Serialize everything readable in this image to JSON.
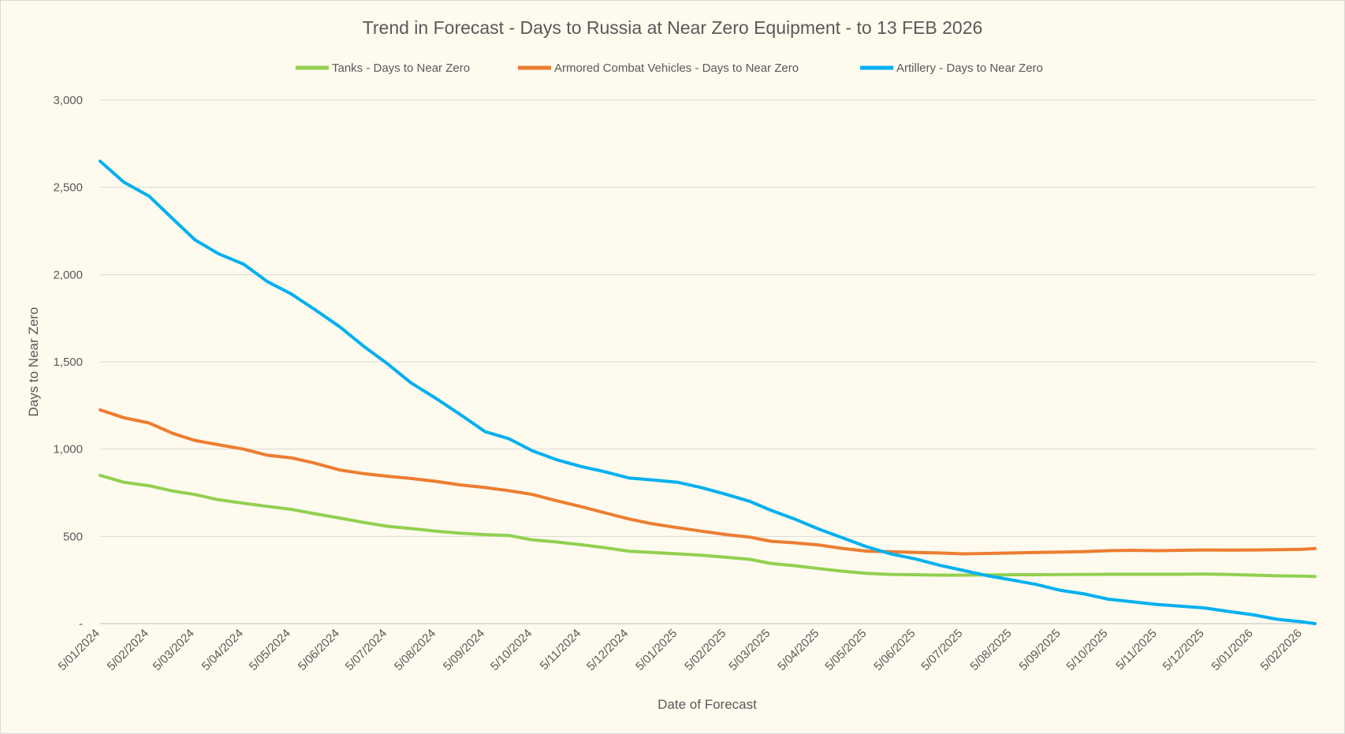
{
  "chart_data": {
    "type": "line",
    "title": "Trend in Forecast - Days to Russia at Near Zero Equipment - to 13 FEB 2026",
    "xlabel": "Date of Forecast",
    "ylabel": "Days to Near Zero",
    "ylim": [
      0,
      3000
    ],
    "yticks": [
      0,
      500,
      1000,
      1500,
      2000,
      2500,
      3000
    ],
    "ytick_labels": [
      "-",
      "500",
      "1,000",
      "1,500",
      "2,000",
      "2,500",
      "3,000"
    ],
    "xlim": [
      "2024-01-05",
      "2026-02-13"
    ],
    "xtick_labels": [
      "5/01/2024",
      "5/02/2024",
      "5/03/2024",
      "5/04/2024",
      "5/05/2024",
      "5/06/2024",
      "5/07/2024",
      "5/08/2024",
      "5/09/2024",
      "5/10/2024",
      "5/11/2024",
      "5/12/2024",
      "5/01/2025",
      "5/02/2025",
      "5/03/2025",
      "5/04/2025",
      "5/05/2025",
      "5/06/2025",
      "5/07/2025",
      "5/08/2025",
      "5/09/2025",
      "5/10/2025",
      "5/11/2025",
      "5/12/2025",
      "5/01/2026",
      "5/02/2026"
    ],
    "xtick_dates": [
      "2024-01-05",
      "2024-02-05",
      "2024-03-05",
      "2024-04-05",
      "2024-05-05",
      "2024-06-05",
      "2024-07-05",
      "2024-08-05",
      "2024-09-05",
      "2024-10-05",
      "2024-11-05",
      "2024-12-05",
      "2025-01-05",
      "2025-02-05",
      "2025-03-05",
      "2025-04-05",
      "2025-05-05",
      "2025-06-05",
      "2025-07-05",
      "2025-08-05",
      "2025-09-05",
      "2025-10-05",
      "2025-11-05",
      "2025-12-05",
      "2026-01-05",
      "2026-02-05"
    ],
    "grid": true,
    "legend_position": "top",
    "series": [
      {
        "name": "Tanks - Days to Near Zero",
        "color": "#92d050",
        "points": [
          [
            "2024-01-05",
            850
          ],
          [
            "2024-01-20",
            810
          ],
          [
            "2024-02-05",
            790
          ],
          [
            "2024-02-20",
            760
          ],
          [
            "2024-03-05",
            740
          ],
          [
            "2024-03-20",
            710
          ],
          [
            "2024-04-05",
            690
          ],
          [
            "2024-04-20",
            672
          ],
          [
            "2024-05-05",
            655
          ],
          [
            "2024-05-20",
            630
          ],
          [
            "2024-06-05",
            605
          ],
          [
            "2024-06-20",
            580
          ],
          [
            "2024-07-05",
            558
          ],
          [
            "2024-07-20",
            545
          ],
          [
            "2024-08-05",
            530
          ],
          [
            "2024-08-20",
            518
          ],
          [
            "2024-09-05",
            510
          ],
          [
            "2024-09-20",
            505
          ],
          [
            "2024-10-05",
            480
          ],
          [
            "2024-10-20",
            468
          ],
          [
            "2024-11-05",
            452
          ],
          [
            "2024-11-20",
            435
          ],
          [
            "2024-12-05",
            415
          ],
          [
            "2024-12-20",
            408
          ],
          [
            "2025-01-05",
            400
          ],
          [
            "2025-01-20",
            392
          ],
          [
            "2025-02-05",
            380
          ],
          [
            "2025-02-20",
            368
          ],
          [
            "2025-03-05",
            345
          ],
          [
            "2025-03-20",
            332
          ],
          [
            "2025-04-05",
            315
          ],
          [
            "2025-04-20",
            300
          ],
          [
            "2025-05-05",
            288
          ],
          [
            "2025-05-20",
            282
          ],
          [
            "2025-06-05",
            280
          ],
          [
            "2025-06-20",
            278
          ],
          [
            "2025-07-05",
            278
          ],
          [
            "2025-07-20",
            279
          ],
          [
            "2025-08-05",
            280
          ],
          [
            "2025-08-20",
            280
          ],
          [
            "2025-09-05",
            281
          ],
          [
            "2025-09-20",
            282
          ],
          [
            "2025-10-05",
            283
          ],
          [
            "2025-10-20",
            283
          ],
          [
            "2025-11-05",
            283
          ],
          [
            "2025-11-20",
            283
          ],
          [
            "2025-12-05",
            284
          ],
          [
            "2025-12-20",
            282
          ],
          [
            "2026-01-05",
            278
          ],
          [
            "2026-01-20",
            274
          ],
          [
            "2026-02-05",
            272
          ],
          [
            "2026-02-13",
            270
          ]
        ]
      },
      {
        "name": "Armored Combat Vehicles - Days to Near Zero",
        "color": "#ed7d31",
        "points": [
          [
            "2024-01-05",
            1225
          ],
          [
            "2024-01-20",
            1180
          ],
          [
            "2024-02-05",
            1150
          ],
          [
            "2024-02-20",
            1090
          ],
          [
            "2024-03-05",
            1050
          ],
          [
            "2024-03-20",
            1025
          ],
          [
            "2024-04-05",
            1000
          ],
          [
            "2024-04-20",
            965
          ],
          [
            "2024-05-05",
            950
          ],
          [
            "2024-05-20",
            920
          ],
          [
            "2024-06-05",
            880
          ],
          [
            "2024-06-20",
            860
          ],
          [
            "2024-07-05",
            845
          ],
          [
            "2024-07-20",
            832
          ],
          [
            "2024-08-05",
            815
          ],
          [
            "2024-08-20",
            795
          ],
          [
            "2024-09-05",
            780
          ],
          [
            "2024-09-20",
            762
          ],
          [
            "2024-10-05",
            740
          ],
          [
            "2024-10-20",
            705
          ],
          [
            "2024-11-05",
            670
          ],
          [
            "2024-11-20",
            635
          ],
          [
            "2024-12-05",
            600
          ],
          [
            "2024-12-20",
            572
          ],
          [
            "2025-01-05",
            550
          ],
          [
            "2025-01-20",
            530
          ],
          [
            "2025-02-05",
            510
          ],
          [
            "2025-02-20",
            495
          ],
          [
            "2025-03-05",
            472
          ],
          [
            "2025-03-20",
            463
          ],
          [
            "2025-04-05",
            450
          ],
          [
            "2025-04-20",
            430
          ],
          [
            "2025-05-05",
            415
          ],
          [
            "2025-05-20",
            412
          ],
          [
            "2025-06-05",
            408
          ],
          [
            "2025-06-20",
            405
          ],
          [
            "2025-07-05",
            400
          ],
          [
            "2025-07-20",
            402
          ],
          [
            "2025-08-05",
            405
          ],
          [
            "2025-08-20",
            408
          ],
          [
            "2025-09-05",
            410
          ],
          [
            "2025-09-20",
            413
          ],
          [
            "2025-10-05",
            418
          ],
          [
            "2025-10-20",
            420
          ],
          [
            "2025-11-05",
            418
          ],
          [
            "2025-11-20",
            420
          ],
          [
            "2025-12-05",
            422
          ],
          [
            "2025-12-20",
            421
          ],
          [
            "2026-01-05",
            422
          ],
          [
            "2026-01-20",
            424
          ],
          [
            "2026-02-05",
            426
          ],
          [
            "2026-02-13",
            430
          ]
        ]
      },
      {
        "name": "Artillery - Days to Near Zero",
        "color": "#00b0f0",
        "points": [
          [
            "2024-01-05",
            2650
          ],
          [
            "2024-01-20",
            2530
          ],
          [
            "2024-02-05",
            2450
          ],
          [
            "2024-02-20",
            2320
          ],
          [
            "2024-03-05",
            2200
          ],
          [
            "2024-03-20",
            2120
          ],
          [
            "2024-04-05",
            2060
          ],
          [
            "2024-04-20",
            1960
          ],
          [
            "2024-05-05",
            1890
          ],
          [
            "2024-05-20",
            1800
          ],
          [
            "2024-06-05",
            1700
          ],
          [
            "2024-06-20",
            1590
          ],
          [
            "2024-07-05",
            1490
          ],
          [
            "2024-07-20",
            1380
          ],
          [
            "2024-08-05",
            1290
          ],
          [
            "2024-08-20",
            1200
          ],
          [
            "2024-09-05",
            1100
          ],
          [
            "2024-09-20",
            1060
          ],
          [
            "2024-10-05",
            990
          ],
          [
            "2024-10-20",
            940
          ],
          [
            "2024-11-05",
            900
          ],
          [
            "2024-11-20",
            870
          ],
          [
            "2024-12-05",
            835
          ],
          [
            "2024-12-20",
            823
          ],
          [
            "2025-01-05",
            810
          ],
          [
            "2025-01-20",
            780
          ],
          [
            "2025-02-05",
            740
          ],
          [
            "2025-02-20",
            700
          ],
          [
            "2025-03-05",
            650
          ],
          [
            "2025-03-20",
            600
          ],
          [
            "2025-04-05",
            540
          ],
          [
            "2025-04-20",
            490
          ],
          [
            "2025-05-05",
            440
          ],
          [
            "2025-05-20",
            400
          ],
          [
            "2025-06-05",
            370
          ],
          [
            "2025-06-20",
            335
          ],
          [
            "2025-07-05",
            305
          ],
          [
            "2025-07-20",
            275
          ],
          [
            "2025-08-05",
            250
          ],
          [
            "2025-08-20",
            225
          ],
          [
            "2025-09-05",
            190
          ],
          [
            "2025-09-20",
            170
          ],
          [
            "2025-10-05",
            140
          ],
          [
            "2025-10-20",
            125
          ],
          [
            "2025-11-05",
            110
          ],
          [
            "2025-11-20",
            100
          ],
          [
            "2025-12-05",
            90
          ],
          [
            "2025-12-20",
            70
          ],
          [
            "2026-01-05",
            50
          ],
          [
            "2026-01-20",
            25
          ],
          [
            "2026-02-05",
            10
          ],
          [
            "2026-02-13",
            0
          ]
        ]
      }
    ]
  }
}
